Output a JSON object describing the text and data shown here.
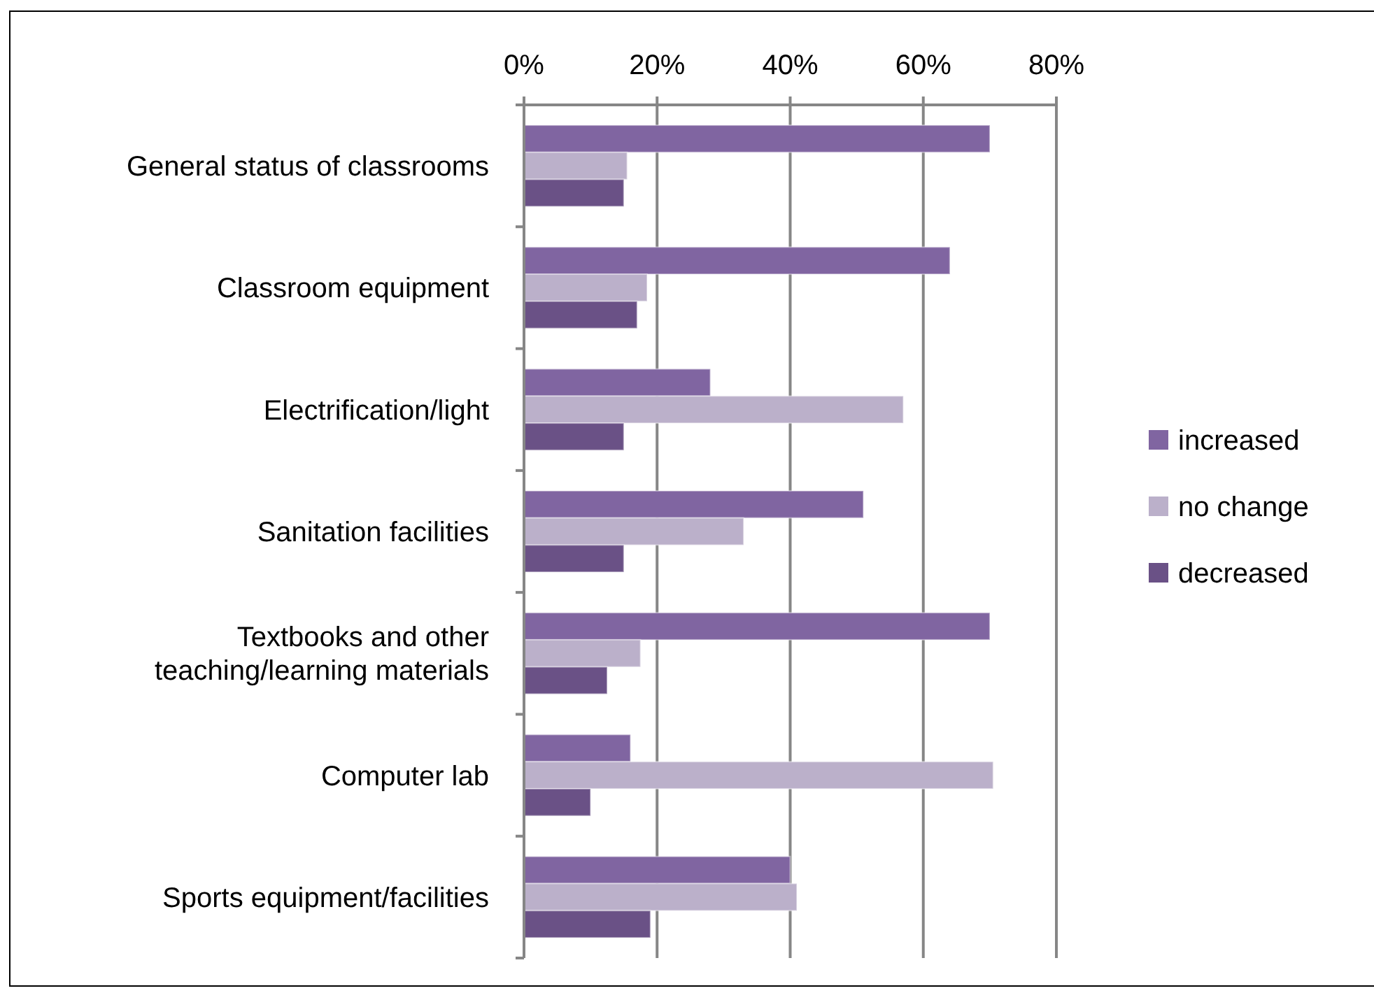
{
  "chart_data": {
    "type": "bar",
    "orientation": "horizontal",
    "categories": [
      "General status of classrooms",
      "Classroom equipment",
      "Electrification/light",
      "Sanitation facilities",
      "Textbooks and other teaching/learning materials",
      "Computer lab",
      "Sports equipment/facilities"
    ],
    "series": [
      {
        "name": "increased",
        "color": "#8065a1",
        "values": [
          70,
          64,
          28,
          51,
          70,
          16,
          40
        ]
      },
      {
        "name": "no change",
        "color": "#bbb0ca",
        "values": [
          15.5,
          18.5,
          57,
          33,
          17.5,
          70.5,
          41
        ]
      },
      {
        "name": "decreased",
        "color": "#6a5186",
        "values": [
          15,
          17,
          15,
          15,
          12.5,
          10,
          19
        ]
      }
    ],
    "xlim": [
      0,
      80
    ],
    "xticks": [
      {
        "value": 0,
        "label": "0%"
      },
      {
        "value": 20,
        "label": "20%"
      },
      {
        "value": 40,
        "label": "40%"
      },
      {
        "value": 60,
        "label": "60%"
      },
      {
        "value": 80,
        "label": "80%"
      }
    ],
    "grid": "x",
    "legend": "right"
  }
}
